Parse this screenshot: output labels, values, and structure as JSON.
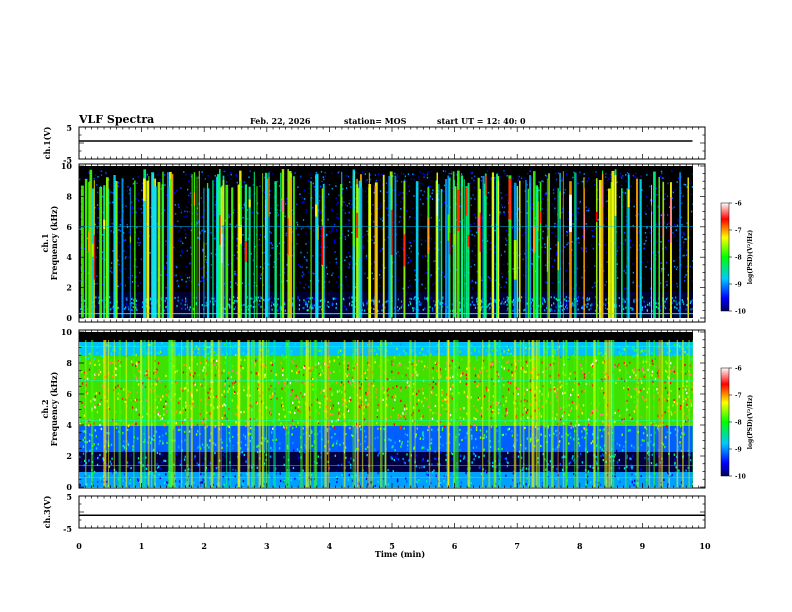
{
  "header": {
    "title": "VLF Spectra",
    "date": "Feb. 22, 2026",
    "station": "station= MOS",
    "start_ut": "start  UT =   12: 40: 0"
  },
  "chart_data": [
    {
      "type": "line",
      "panel": "ch1_waveform",
      "ylabel": "ch.1(V)",
      "ylim": [
        -5,
        5
      ],
      "ytick_labels": [
        "5",
        "-5"
      ],
      "x": [
        0,
        9.8
      ],
      "values": [
        0,
        0
      ]
    },
    {
      "type": "heatmap",
      "panel": "ch1_spectrogram",
      "ylabel": "ch.1\nFrequency (kHz)",
      "ylabel_line1": "ch.1",
      "ylabel_line2": "Frequency (kHz)",
      "ylim": [
        0,
        10
      ],
      "ytick_labels": [
        "0",
        "2",
        "4",
        "6",
        "8",
        "10"
      ],
      "xlim": [
        0,
        9.85
      ],
      "colorbar": {
        "label": "log(PSD)(V²/Hz)",
        "range": [
          -10,
          -6
        ],
        "tick_labels": [
          "-6",
          "-7",
          "-8",
          "-9",
          "-10"
        ]
      }
    },
    {
      "type": "heatmap",
      "panel": "ch2_spectrogram",
      "ylabel": "ch.2\nFrequency (kHz)",
      "ylabel_line1": "ch.2",
      "ylabel_line2": "Frequency (kHz)",
      "ylim": [
        0,
        10
      ],
      "ytick_labels": [
        "0",
        "2",
        "4",
        "6",
        "8",
        "10"
      ],
      "xlim": [
        0,
        9.85
      ],
      "colorbar": {
        "label": "log(PSD)(V²/Hz)",
        "range": [
          -10,
          -6
        ],
        "tick_labels": [
          "-6",
          "-7",
          "-8",
          "-9",
          "-10"
        ]
      }
    },
    {
      "type": "line",
      "panel": "ch3_waveform",
      "ylabel": "ch.3(V)",
      "ylim": [
        -5,
        5
      ],
      "ytick_labels": [
        "5",
        "-5"
      ],
      "x": [
        0,
        10
      ],
      "values": [
        -1,
        -1
      ]
    }
  ],
  "x_axis": {
    "label": "Time  (min)",
    "range": [
      0,
      10
    ],
    "tick_labels": [
      "0",
      "1",
      "2",
      "3",
      "4",
      "5",
      "6",
      "7",
      "8",
      "9",
      "10"
    ]
  },
  "colors": {
    "spectrum_low": "#000080",
    "spectrum_mid": "#00ff00",
    "spectrum_high": "#ff0000",
    "spectrum_peak": "#ffffff",
    "background": "#000000"
  }
}
